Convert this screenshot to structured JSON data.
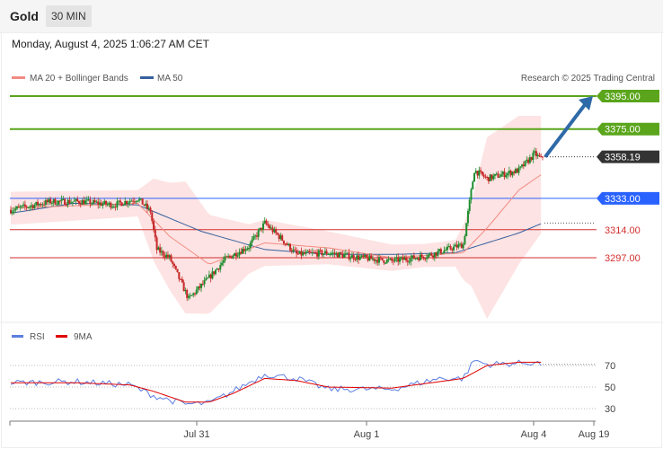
{
  "header": {
    "symbol": "Gold",
    "timeframe": "30 MIN",
    "date": "Monday, August 4, 2025 1:06:27 AM CET"
  },
  "legend": {
    "ma20": "MA 20 + Bollinger Bands",
    "ma50": "MA 50",
    "credit": "Research © 2025 Trading Central",
    "ma20_color": "#f28b82",
    "ma50_color": "#35609e"
  },
  "rsi_legend": {
    "rsi": "RSI",
    "ma9": "9MA",
    "rsi_color": "#5b7ee0",
    "ma9_color": "#e00000"
  },
  "chart_data": [
    {
      "type": "candlestick",
      "title": "Gold",
      "x_ticks": [
        "Jul 31",
        "Aug 1",
        "Aug 4",
        "Aug 19"
      ],
      "ylim": [
        3260,
        3405
      ],
      "levels": [
        {
          "value": 3395.0,
          "label": "3395.00",
          "color": "#5aa51b",
          "kind": "resistance"
        },
        {
          "value": 3375.0,
          "label": "3375.00",
          "color": "#5aa51b",
          "kind": "resistance"
        },
        {
          "value": 3358.19,
          "label": "3358.19",
          "color": "#333333",
          "kind": "last"
        },
        {
          "value": 3333.0,
          "label": "3333.00",
          "color": "#2962ff",
          "kind": "pivot"
        },
        {
          "value": 3314.0,
          "label": "3314.00",
          "color": "#d32f2f",
          "kind": "support"
        },
        {
          "value": 3297.0,
          "label": "3297.00",
          "color": "#d32f2f",
          "kind": "support"
        }
      ],
      "close_anchors": [
        [
          0,
          3326
        ],
        [
          25,
          3331
        ],
        [
          45,
          3331
        ],
        [
          65,
          3329
        ],
        [
          80,
          3333
        ],
        [
          88,
          3325
        ],
        [
          92,
          3302
        ],
        [
          100,
          3297
        ],
        [
          112,
          3272
        ],
        [
          125,
          3285
        ],
        [
          135,
          3296
        ],
        [
          150,
          3304
        ],
        [
          160,
          3318
        ],
        [
          170,
          3309
        ],
        [
          180,
          3299
        ],
        [
          200,
          3300
        ],
        [
          220,
          3297
        ],
        [
          240,
          3295
        ],
        [
          255,
          3297
        ],
        [
          265,
          3299
        ],
        [
          285,
          3305
        ],
        [
          292,
          3350
        ],
        [
          300,
          3345
        ],
        [
          320,
          3350
        ],
        [
          330,
          3360
        ],
        [
          335,
          3356
        ]
      ],
      "ma50_anchors": [
        [
          0,
          3324
        ],
        [
          40,
          3330
        ],
        [
          80,
          3329
        ],
        [
          120,
          3313
        ],
        [
          160,
          3302
        ],
        [
          200,
          3299
        ],
        [
          240,
          3299
        ],
        [
          280,
          3300
        ],
        [
          320,
          3312
        ],
        [
          335,
          3318
        ]
      ],
      "ma20_anchors": [
        [
          0,
          3327
        ],
        [
          80,
          3330
        ],
        [
          100,
          3310
        ],
        [
          125,
          3293
        ],
        [
          160,
          3306
        ],
        [
          200,
          3303
        ],
        [
          240,
          3297
        ],
        [
          285,
          3300
        ],
        [
          300,
          3315
        ],
        [
          320,
          3338
        ],
        [
          335,
          3348
        ]
      ],
      "band_width_anchors": [
        [
          0,
          10
        ],
        [
          80,
          8
        ],
        [
          90,
          25
        ],
        [
          110,
          40
        ],
        [
          125,
          30
        ],
        [
          150,
          15
        ],
        [
          200,
          10
        ],
        [
          260,
          7
        ],
        [
          280,
          8
        ],
        [
          290,
          25
        ],
        [
          300,
          55
        ],
        [
          320,
          45
        ],
        [
          335,
          35
        ]
      ],
      "arrow": {
        "from": 3358.19,
        "to": 3395.0
      }
    },
    {
      "type": "line",
      "title": "RSI",
      "series": [
        {
          "name": "RSI"
        },
        {
          "name": "9MA"
        }
      ],
      "y_ticks": [
        30,
        50,
        70
      ],
      "ylim": [
        20,
        90
      ],
      "rsi_anchors": [
        [
          0,
          54
        ],
        [
          40,
          55
        ],
        [
          75,
          52
        ],
        [
          90,
          42
        ],
        [
          110,
          34
        ],
        [
          125,
          35
        ],
        [
          140,
          46
        ],
        [
          160,
          62
        ],
        [
          180,
          58
        ],
        [
          200,
          48
        ],
        [
          240,
          48
        ],
        [
          270,
          58
        ],
        [
          285,
          58
        ],
        [
          292,
          75
        ],
        [
          300,
          71
        ],
        [
          320,
          72
        ],
        [
          330,
          73
        ],
        [
          335,
          71
        ]
      ],
      "ma9_anchors": [
        [
          0,
          54
        ],
        [
          40,
          54
        ],
        [
          75,
          52
        ],
        [
          90,
          46
        ],
        [
          110,
          36
        ],
        [
          125,
          36
        ],
        [
          140,
          44
        ],
        [
          160,
          58
        ],
        [
          180,
          56
        ],
        [
          200,
          50
        ],
        [
          240,
          49
        ],
        [
          270,
          55
        ],
        [
          285,
          58
        ],
        [
          300,
          70
        ],
        [
          320,
          73
        ],
        [
          335,
          73
        ]
      ]
    }
  ]
}
